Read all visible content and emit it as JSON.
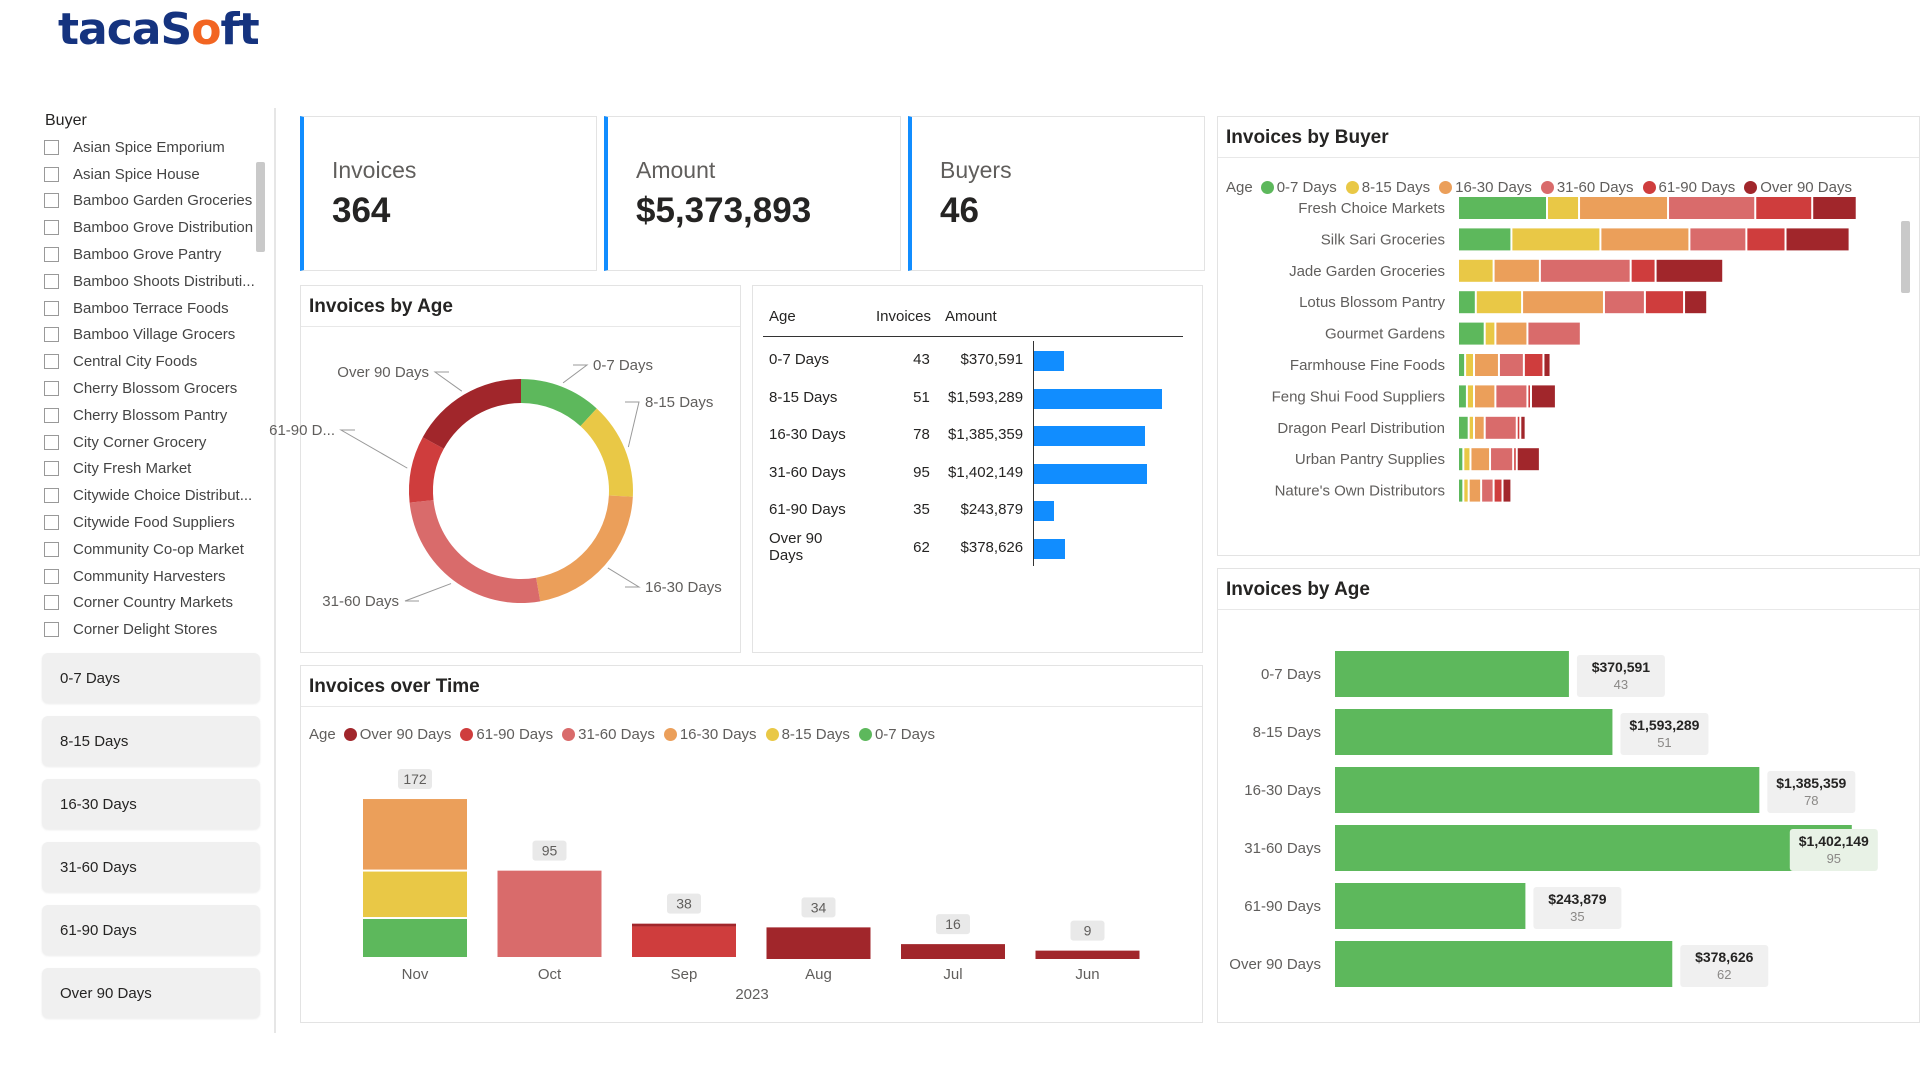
{
  "brand": {
    "logo_pre": "taca",
    "logo_mid": "S",
    "logo_dot": "o",
    "logo_post": "ft"
  },
  "colors": {
    "d0_7": "#5db85c",
    "d8_15": "#e9c846",
    "d16_30": "#eb9f5a",
    "d31_60": "#d96b6b",
    "d61_90": "#cf3d3d",
    "d90": "#a1262b",
    "accent": "#118dff"
  },
  "slicer": {
    "title": "Buyer",
    "items": [
      "Asian Spice Emporium",
      "Asian Spice House",
      "Bamboo Garden Groceries",
      "Bamboo Grove Distribution",
      "Bamboo Grove Pantry",
      "Bamboo Shoots Distributi...",
      "Bamboo Terrace Foods",
      "Bamboo Village Grocers",
      "Central City Foods",
      "Cherry Blossom Grocers",
      "Cherry Blossom Pantry",
      "City Corner Grocery",
      "City Fresh Market",
      "Citywide Choice Distribut...",
      "Citywide Food Suppliers",
      "Community Co-op Market",
      "Community Harvesters",
      "Corner Country Markets",
      "Corner Delight Stores"
    ]
  },
  "age_buttons": [
    "0-7 Days",
    "8-15 Days",
    "16-30 Days",
    "31-60 Days",
    "61-90 Days",
    "Over 90 Days"
  ],
  "kpis": {
    "invoices": {
      "label": "Invoices",
      "value": "364"
    },
    "amount": {
      "label": "Amount",
      "value": "$5,373,893"
    },
    "buyers": {
      "label": "Buyers",
      "value": "46"
    }
  },
  "chart_data": [
    {
      "id": "donut",
      "type": "pie",
      "title": "Invoices by Age",
      "categories": [
        "0-7 Days",
        "8-15 Days",
        "16-30 Days",
        "31-60 Days",
        "61-90 D...",
        "Over 90 Days"
      ],
      "values": [
        43,
        51,
        78,
        95,
        35,
        62
      ]
    },
    {
      "id": "table",
      "type": "table",
      "columns": [
        "Age",
        "Invoices",
        "Amount"
      ],
      "rows": [
        {
          "age": "0-7 Days",
          "invoices": "43",
          "amount": "$370,591",
          "value": 370591
        },
        {
          "age": "8-15 Days",
          "invoices": "51",
          "amount": "$1,593,289",
          "value": 1593289
        },
        {
          "age": "16-30 Days",
          "invoices": "78",
          "amount": "$1,385,359",
          "value": 1385359
        },
        {
          "age": "31-60 Days",
          "invoices": "95",
          "amount": "$1,402,149",
          "value": 1402149
        },
        {
          "age": "61-90 Days",
          "invoices": "35",
          "amount": "$243,879",
          "value": 243879
        },
        {
          "age": "Over 90 Days",
          "invoices": "62",
          "amount": "$378,626",
          "value": 378626
        }
      ]
    },
    {
      "id": "time",
      "type": "bar",
      "title": "Invoices over Time",
      "legend_title": "Age",
      "legend": [
        "Over 90 Days",
        "61-90 Days",
        "31-60 Days",
        "16-30 Days",
        "8-15 Days",
        "0-7 Days"
      ],
      "categories": [
        "Nov",
        "Oct",
        "Sep",
        "Aug",
        "Jul",
        "Jun"
      ],
      "xlabel": "2023",
      "totals": [
        172,
        95,
        38,
        34,
        16,
        9
      ],
      "series": [
        {
          "name": "0-7 Days",
          "values": [
            43,
            0,
            0,
            0,
            0,
            0
          ]
        },
        {
          "name": "8-15 Days",
          "values": [
            51,
            0,
            0,
            0,
            0,
            0
          ]
        },
        {
          "name": "16-30 Days",
          "values": [
            78,
            0,
            0,
            0,
            0,
            0
          ]
        },
        {
          "name": "31-60 Days",
          "values": [
            0,
            95,
            0,
            0,
            0,
            0
          ]
        },
        {
          "name": "61-90 Days",
          "values": [
            0,
            0,
            35,
            0,
            0,
            0
          ]
        },
        {
          "name": "Over 90 Days",
          "values": [
            0,
            0,
            3,
            34,
            16,
            9
          ]
        }
      ]
    },
    {
      "id": "buyer",
      "type": "bar",
      "title": "Invoices by Buyer",
      "legend_title": "Age",
      "legend": [
        "0-7 Days",
        "8-15 Days",
        "16-30 Days",
        "31-60 Days",
        "61-90 Days",
        "Over 90 Days"
      ],
      "categories": [
        "Fresh Choice Markets",
        "Silk Sari Groceries",
        "Jade Garden Groceries",
        "Lotus Blossom Pantry",
        "Gourmet Gardens",
        "Farmhouse Fine Foods",
        "Feng Shui Food Suppliers",
        "Dragon Pearl Distribution",
        "Urban Pantry Supplies",
        "Nature's Own Distributors"
      ],
      "series": [
        {
          "name": "0-7 Days",
          "values": [
            5,
            3,
            0,
            1,
            1.5,
            0.4,
            0.5,
            0.6,
            0.3,
            0.3
          ]
        },
        {
          "name": "8-15 Days",
          "values": [
            1.8,
            5,
            2,
            2.6,
            0.6,
            0.5,
            0.4,
            0.3,
            0.4,
            0.3
          ]
        },
        {
          "name": "16-30 Days",
          "values": [
            5,
            5,
            2.6,
            4.6,
            1.8,
            1.4,
            1.2,
            0.6,
            1.1,
            0.7
          ]
        },
        {
          "name": "31-60 Days",
          "values": [
            4.9,
            3.2,
            5.1,
            2.3,
            3,
            1.4,
            1.8,
            1.8,
            1.3,
            0.7
          ]
        },
        {
          "name": "61-90 Days",
          "values": [
            3.2,
            2.2,
            1.4,
            2.2,
            0,
            1.1,
            0.2,
            0.2,
            0.2,
            0.5
          ]
        },
        {
          "name": "Over 90 Days",
          "values": [
            2.5,
            3.6,
            3.8,
            1.3,
            0,
            0.4,
            1.4,
            0.3,
            1.3,
            0.5
          ]
        }
      ]
    },
    {
      "id": "agebar",
      "type": "bar",
      "title": "Invoices by Age",
      "categories": [
        "0-7 Days",
        "8-15 Days",
        "16-30 Days",
        "31-60 Days",
        "61-90 Days",
        "Over 90 Days"
      ],
      "values": [
        370591,
        1593289,
        1385359,
        1402149,
        243879,
        378626
      ],
      "bar_lengths": [
        43,
        51,
        78,
        95,
        35,
        62
      ],
      "amount_labels": [
        "$370,591",
        "$1,593,289",
        "$1,385,359",
        "$1,402,149",
        "$243,879",
        "$378,626"
      ],
      "count_labels": [
        "43",
        "51",
        "78",
        "95",
        "35",
        "62"
      ]
    }
  ]
}
